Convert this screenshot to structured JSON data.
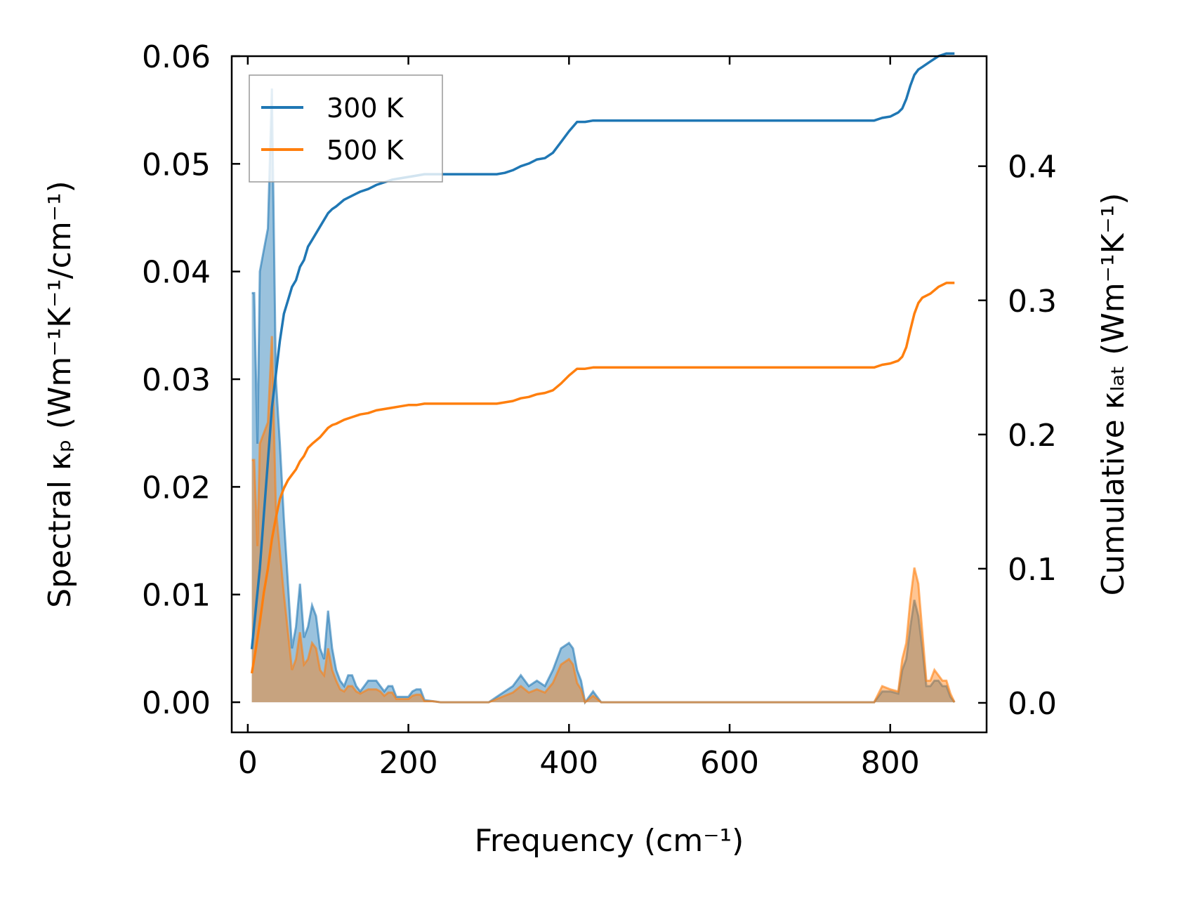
{
  "chart_data": {
    "type": "line",
    "xlabel": "Frequency (cm⁻¹)",
    "ylabel_left": "Spectral κₚ (Wm⁻¹K⁻¹/cm⁻¹)",
    "ylabel_right": "Cumulative κₗₐₜ (Wm⁻¹K⁻¹)",
    "xlim": [
      -20,
      920
    ],
    "ylim_left": [
      -0.0028,
      0.06
    ],
    "ylim_right": [
      -0.022,
      0.482
    ],
    "xticks": [
      0,
      200,
      400,
      600,
      800
    ],
    "xtick_labels": [
      "0",
      "200",
      "400",
      "600",
      "800"
    ],
    "yticks_left": [
      0.0,
      0.01,
      0.02,
      0.03,
      0.04,
      0.05,
      0.06
    ],
    "ytick_labels_left": [
      "0.00",
      "0.01",
      "0.02",
      "0.03",
      "0.04",
      "0.05",
      "0.06"
    ],
    "yticks_right": [
      0.0,
      0.1,
      0.2,
      0.3,
      0.4
    ],
    "ytick_labels_right": [
      "0.0",
      "0.1",
      "0.2",
      "0.3",
      "0.4"
    ],
    "legend": {
      "position": "top-left",
      "entries": [
        "300 K",
        "500 K"
      ]
    },
    "grid": false,
    "colors": {
      "s300": "#1f77b4",
      "s500": "#ff7f0e"
    },
    "spectral": [
      {
        "name": "300 K",
        "x": [
          5,
          8,
          12,
          15,
          20,
          25,
          30,
          35,
          40,
          45,
          50,
          55,
          60,
          65,
          70,
          75,
          80,
          85,
          90,
          95,
          100,
          105,
          110,
          115,
          120,
          125,
          130,
          135,
          140,
          145,
          150,
          155,
          160,
          165,
          170,
          175,
          180,
          185,
          190,
          195,
          200,
          205,
          210,
          215,
          220,
          230,
          240,
          260,
          280,
          300,
          310,
          320,
          330,
          340,
          350,
          360,
          370,
          380,
          390,
          400,
          405,
          410,
          415,
          420,
          425,
          430,
          440,
          500,
          600,
          700,
          780,
          790,
          800,
          810,
          815,
          820,
          825,
          830,
          835,
          840,
          845,
          850,
          855,
          860,
          865,
          870,
          875,
          880
        ],
        "y": [
          0.038,
          0.038,
          0.024,
          0.04,
          0.042,
          0.044,
          0.057,
          0.03,
          0.024,
          0.017,
          0.011,
          0.005,
          0.007,
          0.011,
          0.006,
          0.007,
          0.009,
          0.008,
          0.005,
          0.004,
          0.0085,
          0.005,
          0.003,
          0.002,
          0.0015,
          0.0025,
          0.0025,
          0.0015,
          0.001,
          0.0015,
          0.002,
          0.002,
          0.002,
          0.0015,
          0.001,
          0.0015,
          0.0015,
          0.0005,
          0.0005,
          0.0005,
          0.0005,
          0.001,
          0.0012,
          0.0012,
          0.0002,
          0.0001,
          0.0,
          0.0,
          0.0,
          0.0,
          0.0005,
          0.001,
          0.0015,
          0.0025,
          0.0015,
          0.002,
          0.0015,
          0.003,
          0.005,
          0.0055,
          0.005,
          0.003,
          0.002,
          0.0,
          0.0005,
          0.001,
          0.0,
          0.0,
          0.0,
          0.0,
          0.0,
          0.001,
          0.001,
          0.0008,
          0.003,
          0.004,
          0.007,
          0.0095,
          0.008,
          0.005,
          0.0015,
          0.0015,
          0.002,
          0.002,
          0.0015,
          0.0015,
          0.0005,
          0.0
        ]
      },
      {
        "name": "500 K",
        "x": [
          5,
          8,
          12,
          15,
          20,
          25,
          30,
          35,
          40,
          45,
          50,
          55,
          60,
          65,
          70,
          75,
          80,
          85,
          90,
          95,
          100,
          105,
          110,
          115,
          120,
          125,
          130,
          135,
          140,
          145,
          150,
          155,
          160,
          165,
          170,
          175,
          180,
          185,
          190,
          195,
          200,
          205,
          210,
          215,
          220,
          230,
          240,
          260,
          280,
          300,
          310,
          320,
          330,
          340,
          350,
          360,
          370,
          380,
          390,
          400,
          405,
          410,
          415,
          420,
          425,
          430,
          440,
          500,
          600,
          700,
          780,
          790,
          800,
          810,
          815,
          820,
          825,
          830,
          835,
          840,
          845,
          850,
          855,
          860,
          865,
          870,
          875,
          880
        ],
        "y": [
          0.0225,
          0.0225,
          0.0145,
          0.024,
          0.025,
          0.026,
          0.034,
          0.018,
          0.014,
          0.01,
          0.0065,
          0.003,
          0.004,
          0.0065,
          0.0035,
          0.004,
          0.0055,
          0.005,
          0.003,
          0.0025,
          0.005,
          0.003,
          0.002,
          0.0012,
          0.001,
          0.0015,
          0.0015,
          0.001,
          0.0008,
          0.001,
          0.0012,
          0.0012,
          0.0012,
          0.001,
          0.0006,
          0.0009,
          0.0009,
          0.0003,
          0.0003,
          0.0003,
          0.0003,
          0.0006,
          0.0007,
          0.0007,
          0.0001,
          0.0001,
          0.0,
          0.0,
          0.0,
          0.0,
          0.0003,
          0.0006,
          0.0009,
          0.0015,
          0.0009,
          0.0012,
          0.0009,
          0.0018,
          0.0035,
          0.004,
          0.0035,
          0.0018,
          0.0012,
          0.0,
          0.0003,
          0.0006,
          0.0,
          0.0,
          0.0,
          0.0,
          0.0,
          0.0015,
          0.0012,
          0.001,
          0.004,
          0.0055,
          0.0095,
          0.0125,
          0.011,
          0.0065,
          0.002,
          0.002,
          0.003,
          0.0025,
          0.002,
          0.002,
          0.0008,
          0.0
        ]
      }
    ],
    "cumulative": [
      {
        "name": "300 K",
        "x": [
          5,
          10,
          15,
          20,
          25,
          30,
          35,
          40,
          45,
          50,
          55,
          60,
          65,
          70,
          75,
          80,
          90,
          100,
          105,
          110,
          120,
          130,
          140,
          150,
          160,
          170,
          180,
          190,
          200,
          210,
          220,
          250,
          300,
          310,
          320,
          330,
          340,
          350,
          360,
          370,
          380,
          390,
          400,
          410,
          420,
          430,
          500,
          600,
          700,
          780,
          790,
          800,
          810,
          815,
          820,
          825,
          830,
          835,
          840,
          850,
          860,
          870,
          880
        ],
        "y": [
          0.04,
          0.07,
          0.1,
          0.14,
          0.18,
          0.22,
          0.245,
          0.27,
          0.29,
          0.3,
          0.31,
          0.315,
          0.325,
          0.33,
          0.34,
          0.345,
          0.355,
          0.365,
          0.368,
          0.37,
          0.375,
          0.378,
          0.381,
          0.383,
          0.386,
          0.388,
          0.39,
          0.391,
          0.392,
          0.393,
          0.394,
          0.394,
          0.394,
          0.394,
          0.395,
          0.397,
          0.4,
          0.402,
          0.405,
          0.406,
          0.41,
          0.418,
          0.426,
          0.433,
          0.433,
          0.434,
          0.434,
          0.434,
          0.434,
          0.434,
          0.436,
          0.437,
          0.44,
          0.443,
          0.45,
          0.46,
          0.468,
          0.472,
          0.474,
          0.478,
          0.482,
          0.484,
          0.484
        ]
      },
      {
        "name": "500 K",
        "x": [
          5,
          10,
          15,
          20,
          25,
          30,
          35,
          40,
          45,
          50,
          55,
          60,
          65,
          70,
          75,
          80,
          90,
          100,
          105,
          110,
          120,
          130,
          140,
          150,
          160,
          170,
          180,
          190,
          200,
          210,
          220,
          250,
          300,
          310,
          320,
          330,
          340,
          350,
          360,
          370,
          380,
          390,
          400,
          410,
          420,
          430,
          500,
          600,
          700,
          780,
          790,
          800,
          810,
          815,
          820,
          825,
          830,
          835,
          840,
          850,
          860,
          870,
          880
        ],
        "y": [
          0.022,
          0.04,
          0.06,
          0.082,
          0.1,
          0.122,
          0.138,
          0.152,
          0.16,
          0.166,
          0.17,
          0.174,
          0.18,
          0.184,
          0.19,
          0.193,
          0.198,
          0.205,
          0.207,
          0.208,
          0.211,
          0.213,
          0.215,
          0.216,
          0.218,
          0.219,
          0.22,
          0.221,
          0.222,
          0.222,
          0.223,
          0.223,
          0.223,
          0.223,
          0.224,
          0.225,
          0.227,
          0.228,
          0.23,
          0.231,
          0.233,
          0.238,
          0.244,
          0.249,
          0.249,
          0.25,
          0.25,
          0.25,
          0.25,
          0.25,
          0.252,
          0.253,
          0.255,
          0.258,
          0.265,
          0.278,
          0.29,
          0.298,
          0.302,
          0.305,
          0.31,
          0.313,
          0.313
        ]
      }
    ]
  }
}
